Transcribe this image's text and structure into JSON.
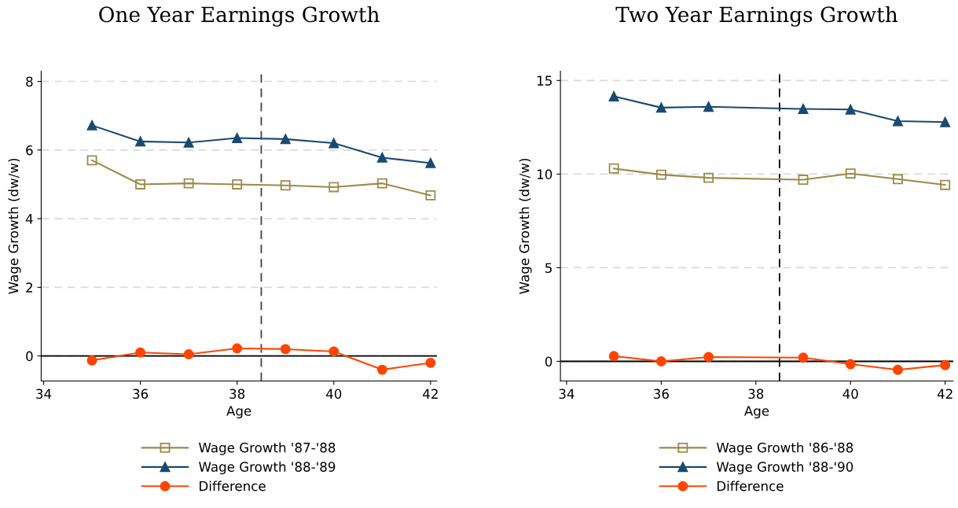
{
  "chart_data": [
    {
      "type": "line",
      "title": "One Year Earnings Growth",
      "xlabel": "Age",
      "ylabel": "Wage Growth (dw/w)",
      "x": [
        35,
        36,
        37,
        38,
        39,
        40,
        41,
        42
      ],
      "series": [
        {
          "name": "Wage Growth '87-'88",
          "color": "#9c8a4a",
          "marker": "square",
          "values": [
            5.7,
            5.0,
            5.03,
            5.0,
            4.97,
            4.92,
            5.03,
            4.68
          ]
        },
        {
          "name": "Wage Growth '88-'89",
          "color": "#1a4a72",
          "marker": "triangle",
          "values": [
            6.72,
            6.25,
            6.22,
            6.35,
            6.32,
            6.2,
            5.78,
            5.62
          ]
        },
        {
          "name": "Difference",
          "color": "#ff4500",
          "marker": "circle",
          "values": [
            -0.13,
            0.1,
            0.05,
            0.22,
            0.2,
            0.13,
            -0.4,
            -0.2
          ]
        }
      ],
      "xlim": [
        33.95,
        42.13
      ],
      "xticks": [
        34,
        36,
        38,
        40,
        42
      ],
      "ylim": [
        -0.73,
        8.3
      ],
      "yticks": [
        0,
        2,
        4,
        6,
        8
      ],
      "ref_lines": [
        {
          "axis": "x",
          "value": 38.5,
          "color": "#404040",
          "line_style": "dashed"
        },
        {
          "axis": "y",
          "value": 0,
          "color": "#000000",
          "line_style": "solid"
        }
      ],
      "grid": "y",
      "legend": "bottom",
      "line_style": "solid"
    },
    {
      "type": "line",
      "title": "Two Year Earnings Growth",
      "xlabel": "Age",
      "ylabel": "Wage Growth (dw/w)",
      "x": [
        35,
        36,
        37,
        39,
        40,
        41,
        42
      ],
      "series": [
        {
          "name": "Wage Growth '86-'88",
          "color": "#9c8a4a",
          "marker": "square",
          "values": [
            10.3,
            9.97,
            9.8,
            9.7,
            10.03,
            9.73,
            9.42
          ]
        },
        {
          "name": "Wage Growth '88-'90",
          "color": "#1a4a72",
          "marker": "triangle",
          "values": [
            14.15,
            13.55,
            13.6,
            13.48,
            13.45,
            12.83,
            12.78
          ]
        },
        {
          "name": "Difference",
          "color": "#ff4500",
          "marker": "circle",
          "values": [
            0.28,
            0.0,
            0.23,
            0.2,
            -0.15,
            -0.45,
            -0.2
          ]
        }
      ],
      "xlim": [
        33.87,
        42.17
      ],
      "xticks": [
        34,
        36,
        38,
        40,
        42
      ],
      "ylim": [
        -1.05,
        15.5
      ],
      "yticks": [
        0,
        5,
        10,
        15
      ],
      "ref_lines": [
        {
          "axis": "x",
          "value": 38.5,
          "color": "#000000",
          "line_style": "dashed"
        },
        {
          "axis": "y",
          "value": 0,
          "color": "#000000",
          "line_style": "solid"
        }
      ],
      "grid": "y",
      "legend": "bottom",
      "line_style": "solid"
    }
  ]
}
